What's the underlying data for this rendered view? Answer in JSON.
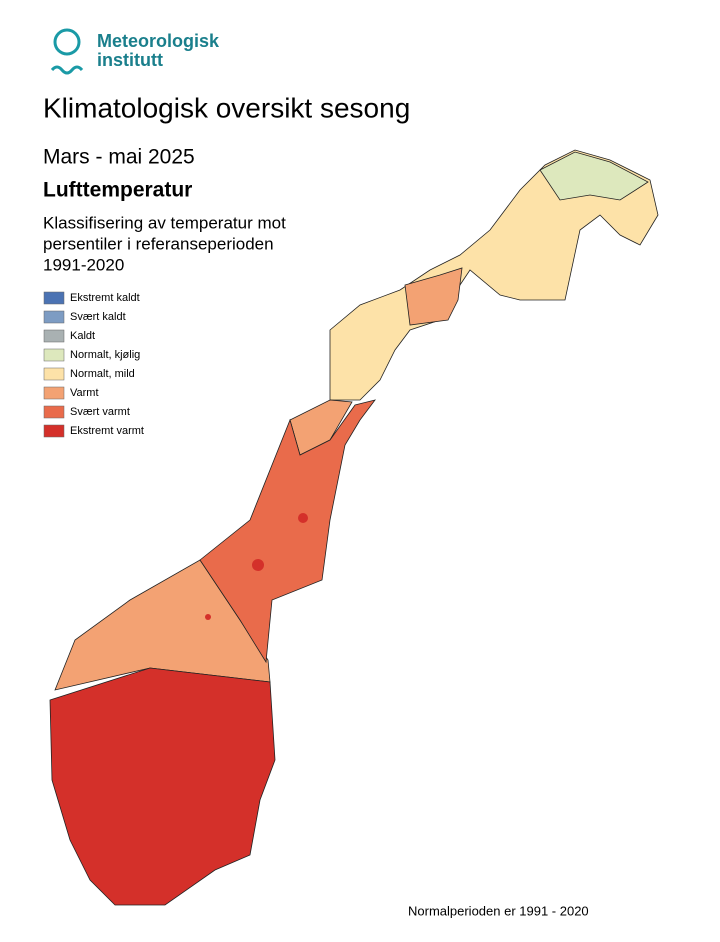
{
  "logo": {
    "lines": [
      "Meteorologisk",
      "institutt"
    ]
  },
  "title": "Klimatologisk oversikt sesong",
  "period": "Mars - mai 2025",
  "parameter": "Lufttemperatur",
  "description": [
    "Klassifisering av temperatur mot",
    "persentiler i referanseperioden",
    "1991-2020"
  ],
  "legend": [
    {
      "label": "Ekstremt kaldt",
      "color": "#4b73b3"
    },
    {
      "label": "Svært kaldt",
      "color": "#7d9cc3"
    },
    {
      "label": "Kaldt",
      "color": "#a9b1b2"
    },
    {
      "label": "Normalt, kjølig",
      "color": "#dde8bd"
    },
    {
      "label": "Normalt, mild",
      "color": "#fde2a8"
    },
    {
      "label": "Varmt",
      "color": "#f3a273"
    },
    {
      "label": "Svært varmt",
      "color": "#e96b4b"
    },
    {
      "label": "Ekstremt varmt",
      "color": "#d4302a"
    }
  ],
  "footnote": "Normalperioden er 1991 - 2020"
}
